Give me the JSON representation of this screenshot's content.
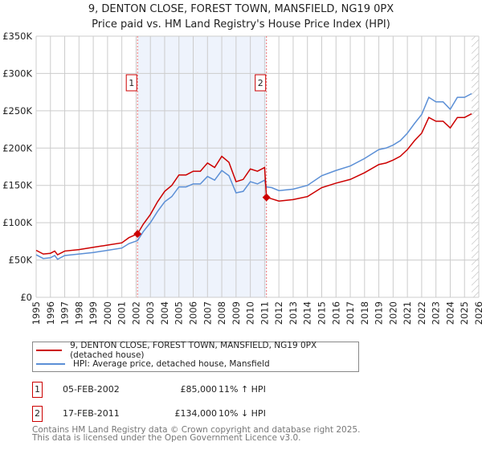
{
  "title": "9, DENTON CLOSE, FOREST TOWN, MANSFIELD, NG19 0PX",
  "subtitle": "Price paid vs. HM Land Registry's House Price Index (HPI)",
  "chart_data": {
    "type": "line",
    "ylim": [
      0,
      350000
    ],
    "xlim": [
      1995,
      2026
    ],
    "yticks": [
      {
        "v": 0,
        "label": "£0"
      },
      {
        "v": 50000,
        "label": "£50K"
      },
      {
        "v": 100000,
        "label": "£100K"
      },
      {
        "v": 150000,
        "label": "£150K"
      },
      {
        "v": 200000,
        "label": "£200K"
      },
      {
        "v": 250000,
        "label": "£250K"
      },
      {
        "v": 300000,
        "label": "£300K"
      },
      {
        "v": 350000,
        "label": "£350K"
      }
    ],
    "xticks": [
      "1995",
      "1996",
      "1997",
      "1998",
      "1999",
      "2000",
      "2001",
      "2002",
      "2003",
      "2004",
      "2005",
      "2006",
      "2007",
      "2008",
      "2009",
      "2010",
      "2011",
      "2012",
      "2013",
      "2014",
      "2015",
      "2016",
      "2017",
      "2018",
      "2019",
      "2020",
      "2021",
      "2022",
      "2023",
      "2024",
      "2025",
      "2026"
    ],
    "grid": true,
    "shaded_range": [
      2002.1,
      2011.13
    ],
    "forecast_hatch_from": 2025.5,
    "series": [
      {
        "name": "9, DENTON CLOSE, FOREST TOWN, MANSFIELD, NG19 0PX (detached house)",
        "color": "#cc0000",
        "x": [
          1995,
          1995.5,
          1996,
          1996.3,
          1996.5,
          1997,
          1998,
          1999,
          2000,
          2001,
          2001.5,
          2002.1,
          2002.5,
          2003,
          2003.5,
          2004,
          2004.5,
          2005,
          2005.5,
          2006,
          2006.5,
          2007,
          2007.5,
          2008,
          2008.5,
          2009,
          2009.5,
          2010,
          2010.5,
          2011,
          2011.13,
          2011.5,
          2012,
          2013,
          2014,
          2015,
          2016,
          2017,
          2018,
          2019,
          2019.5,
          2020,
          2020.5,
          2021,
          2021.5,
          2022,
          2022.5,
          2023,
          2023.5,
          2024,
          2024.5,
          2025,
          2025.5
        ],
        "y": [
          63000,
          58000,
          59000,
          62000,
          57000,
          62000,
          64000,
          67000,
          70000,
          73000,
          80000,
          85000,
          98000,
          111000,
          128000,
          142000,
          150000,
          164000,
          164000,
          169000,
          169000,
          180000,
          174000,
          189000,
          181000,
          155000,
          158000,
          172000,
          169000,
          174000,
          134000,
          132000,
          129000,
          131000,
          135000,
          147000,
          153000,
          158000,
          167000,
          178000,
          180000,
          184000,
          189000,
          198000,
          210000,
          220000,
          241000,
          236000,
          236000,
          227000,
          241000,
          241000,
          246000
        ]
      },
      {
        "name": "HPI: Average price, detached house, Mansfield",
        "color": "#5b8fd6",
        "x": [
          1995,
          1995.5,
          1996,
          1996.3,
          1996.5,
          1997,
          1998,
          1999,
          2000,
          2001,
          2001.5,
          2002.1,
          2002.5,
          2003,
          2003.5,
          2004,
          2004.5,
          2005,
          2005.5,
          2006,
          2006.5,
          2007,
          2007.5,
          2008,
          2008.5,
          2009,
          2009.5,
          2010,
          2010.5,
          2011,
          2011.13,
          2011.5,
          2012,
          2013,
          2014,
          2015,
          2016,
          2017,
          2018,
          2019,
          2019.5,
          2020,
          2020.5,
          2021,
          2021.5,
          2022,
          2022.5,
          2023,
          2023.5,
          2024,
          2024.5,
          2025,
          2025.5
        ],
        "y": [
          57000,
          52000,
          53000,
          56000,
          51000,
          56000,
          58000,
          60000,
          63000,
          66000,
          72000,
          76000,
          88000,
          100000,
          115000,
          128000,
          135000,
          148000,
          148000,
          152000,
          152000,
          162000,
          157000,
          170000,
          163000,
          140000,
          142000,
          155000,
          152000,
          157000,
          148000,
          147000,
          143000,
          145000,
          150000,
          163000,
          170000,
          176000,
          186000,
          198000,
          200000,
          204000,
          210000,
          220000,
          233000,
          245000,
          268000,
          262000,
          262000,
          252000,
          268000,
          268000,
          273000
        ]
      }
    ],
    "sales": [
      {
        "marker": "1",
        "x": 2002.1,
        "price": 85000,
        "date": "05-FEB-2002",
        "price_label": "£85,000",
        "hpi": "11% ↑ HPI"
      },
      {
        "marker": "2",
        "x": 2011.13,
        "price": 134000,
        "date": "17-FEB-2011",
        "price_label": "£134,000",
        "hpi": "10% ↓ HPI"
      }
    ]
  },
  "footer": [
    "Contains HM Land Registry data © Crown copyright and database right 2025.",
    "This data is licensed under the Open Government Licence v3.0."
  ]
}
